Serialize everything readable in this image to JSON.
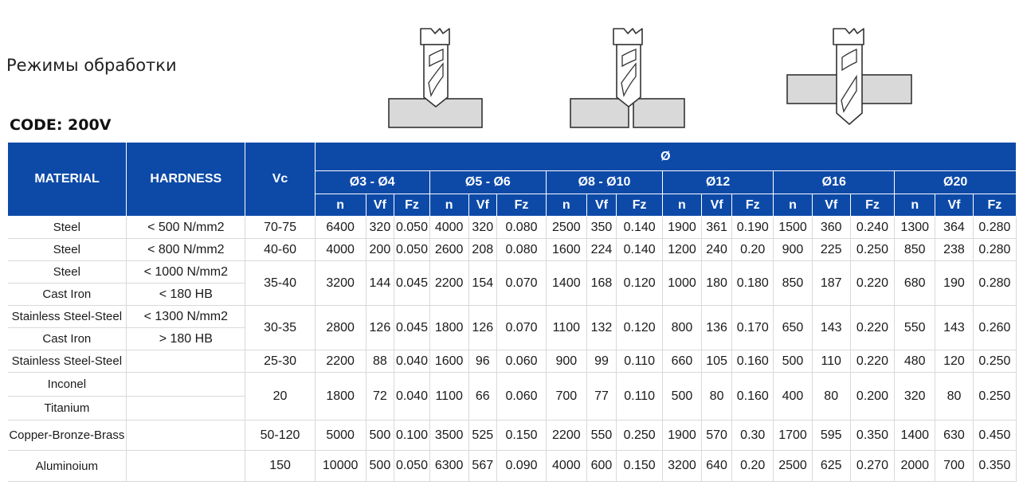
{
  "page": {
    "title": "Режимы обработки",
    "code": "CODE: 200V"
  },
  "table": {
    "headers": {
      "material": "MATERIAL",
      "hardness": "HARDNESS",
      "vc": "Vc",
      "diameter": "Ø",
      "groups": [
        "Ø3 - Ø4",
        "Ø5 - Ø6",
        "Ø8 - Ø10",
        "Ø12",
        "Ø16",
        "Ø20"
      ],
      "sub": [
        "n",
        "Vf",
        "Fz"
      ]
    },
    "rows": [
      {
        "material": "Steel",
        "hardness": "< 500 N/mm2",
        "vc": "70-75",
        "values": [
          "6400",
          "320",
          "0.050",
          "4000",
          "320",
          "0.080",
          "2500",
          "350",
          "0.140",
          "1900",
          "361",
          "0.190",
          "1500",
          "360",
          "0.240",
          "1300",
          "364",
          "0.280"
        ]
      },
      {
        "material": "Steel",
        "hardness": "< 800 N/mm2",
        "vc": "40-60",
        "values": [
          "4000",
          "200",
          "0.050",
          "2600",
          "208",
          "0.080",
          "1600",
          "224",
          "0.140",
          "1200",
          "240",
          "0.20",
          "900",
          "225",
          "0.250",
          "850",
          "238",
          "0.280"
        ]
      },
      {
        "material": "Steel",
        "material2": "Cast Iron",
        "hardness": "< 1000 N/mm2",
        "hardness2": "< 180 HB",
        "vc": "35-40",
        "values": [
          "3200",
          "144",
          "0.045",
          "2200",
          "154",
          "0.070",
          "1400",
          "168",
          "0.120",
          "1000",
          "180",
          "0.180",
          "850",
          "187",
          "0.220",
          "680",
          "190",
          "0.280"
        ]
      },
      {
        "material": "Stainless Steel-Steel",
        "material2": "Cast Iron",
        "hardness": "< 1300 N/mm2",
        "hardness2": "> 180 HB",
        "vc": "30-35",
        "values": [
          "2800",
          "126",
          "0.045",
          "1800",
          "126",
          "0.070",
          "1100",
          "132",
          "0.120",
          "800",
          "136",
          "0.170",
          "650",
          "143",
          "0.220",
          "550",
          "143",
          "0.260"
        ]
      },
      {
        "material": "Stainless Steel-Steel",
        "hardness": "",
        "vc": "25-30",
        "values": [
          "2200",
          "88",
          "0.040",
          "1600",
          "96",
          "0.060",
          "900",
          "99",
          "0.110",
          "660",
          "105",
          "0.160",
          "500",
          "110",
          "0.220",
          "480",
          "120",
          "0.250"
        ]
      },
      {
        "material": "Inconel",
        "material2": "Titanium",
        "hardness": "",
        "hardness2": "",
        "vc": "20",
        "values": [
          "1800",
          "72",
          "0.040",
          "1100",
          "66",
          "0.060",
          "700",
          "77",
          "0.110",
          "500",
          "80",
          "0.160",
          "400",
          "80",
          "0.200",
          "320",
          "80",
          "0.250"
        ]
      },
      {
        "material": "Copper-Bronze-Brass",
        "hardness": "",
        "vc": "50-120",
        "values": [
          "5000",
          "500",
          "0.100",
          "3500",
          "525",
          "0.150",
          "2200",
          "550",
          "0.250",
          "1900",
          "570",
          "0.30",
          "1700",
          "595",
          "0.350",
          "1400",
          "630",
          "0.450"
        ]
      },
      {
        "material": "Aluminoium",
        "hardness": "",
        "vc": "150",
        "values": [
          "10000",
          "500",
          "0.050",
          "6300",
          "567",
          "0.090",
          "4000",
          "600",
          "0.150",
          "3200",
          "640",
          "0.20",
          "2500",
          "625",
          "0.270",
          "2000",
          "700",
          "0.350"
        ]
      }
    ]
  },
  "illustrations": [
    {
      "name": "drill-entry-icon"
    },
    {
      "name": "drill-center-split-icon"
    },
    {
      "name": "drill-through-icon"
    }
  ],
  "colors": {
    "header_bg": "#0d4aa8",
    "grid": "#d9d9d9",
    "plate": "#d9d9d9"
  }
}
